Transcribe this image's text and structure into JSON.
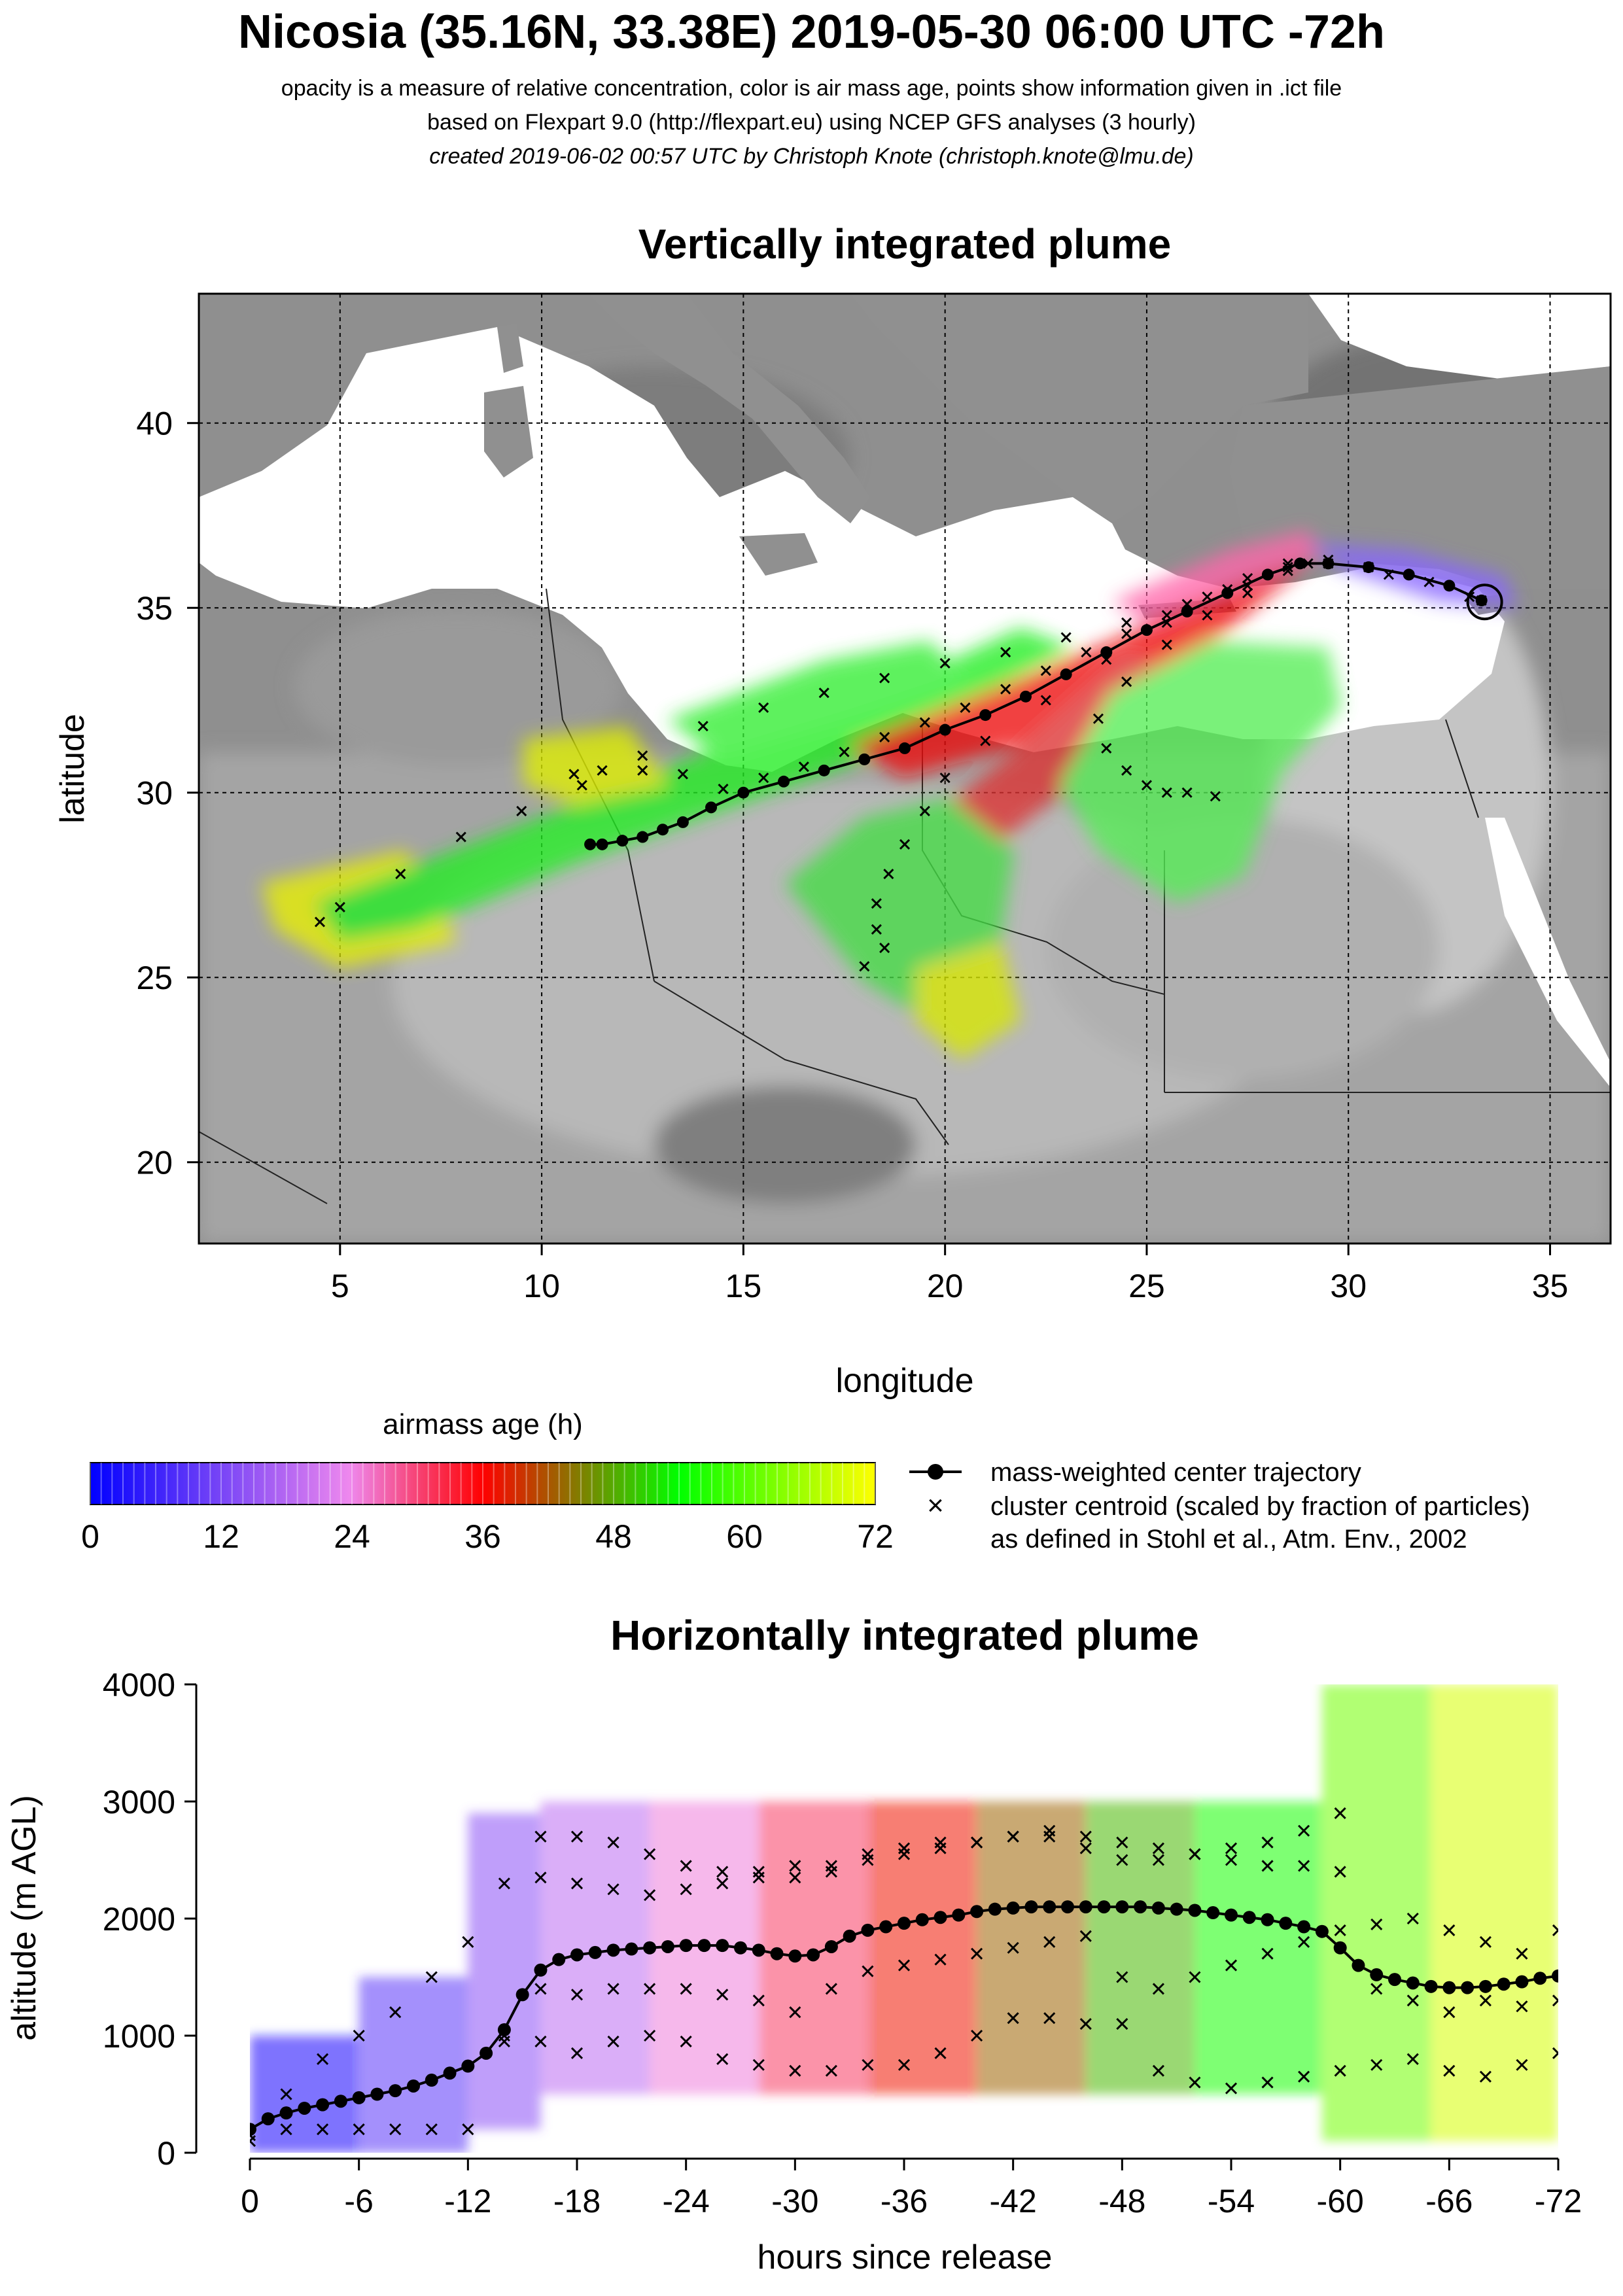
{
  "header": {
    "title": "Nicosia (35.16N, 33.38E) 2019-05-30 06:00 UTC -72h",
    "subtitle1": "opacity is a measure of relative concentration, color is air mass age, points show information given in .ict file",
    "subtitle2": "based on Flexpart 9.0 (http://flexpart.eu) using NCEP GFS analyses (3 hourly)",
    "subtitle3": "created 2019-06-02 00:57 UTC by Christoph Knote (christoph.knote@lmu.de)"
  },
  "colorbar": {
    "title": "airmass age (h)",
    "ticks": [
      "0",
      "12",
      "24",
      "36",
      "48",
      "60",
      "72"
    ],
    "stops": [
      "#0000ff",
      "#ee88ee",
      "#ff0000",
      "#00ff00",
      "#ffff00"
    ]
  },
  "legend": {
    "center_label": "mass-weighted center trajectory",
    "cluster_label": "cluster centroid (scaled by fraction of particles)",
    "cluster_note": "as defined in Stohl et al., Atm. Env., 2002"
  },
  "chart_data": [
    {
      "type": "scatter",
      "title": "Vertically integrated plume",
      "xlabel": "longitude",
      "ylabel": "latitude",
      "xlim": [
        1.5,
        36.5
      ],
      "ylim": [
        17.8,
        43.5
      ],
      "xticks": [
        "5",
        "10",
        "15",
        "20",
        "25",
        "30",
        "35"
      ],
      "yticks": [
        "20",
        "25",
        "30",
        "35",
        "40"
      ],
      "grid": true,
      "release_point": {
        "lon": 33.38,
        "lat": 35.16
      },
      "center_trajectory": {
        "lon": [
          33.3,
          32.5,
          31.5,
          30.5,
          29.5,
          28.8,
          28.0,
          27.0,
          26.0,
          25.0,
          24.0,
          23.0,
          22.0,
          21.0,
          20.0,
          19.0,
          18.0,
          17.0,
          16.0,
          15.0,
          14.2,
          13.5,
          13.0,
          12.5,
          12.0,
          11.5,
          11.2
        ],
        "lat": [
          35.2,
          35.6,
          35.9,
          36.1,
          36.2,
          36.2,
          35.9,
          35.4,
          34.9,
          34.4,
          33.8,
          33.2,
          32.6,
          32.1,
          31.7,
          31.2,
          30.9,
          30.6,
          30.3,
          30.0,
          29.6,
          29.2,
          29.0,
          28.8,
          28.7,
          28.6,
          28.6
        ]
      },
      "clusters": [
        {
          "lon": [
            33.3,
            32.0,
            30.5,
            29.0,
            27.5,
            26.0,
            24.5,
            23.0,
            21.5,
            20.0,
            18.5,
            17.0,
            15.5,
            14.0,
            12.5,
            11.0,
            9.5,
            8.0,
            6.5,
            5.0,
            4.5
          ],
          "lat": [
            35.2,
            35.7,
            36.1,
            36.2,
            35.6,
            35.1,
            34.6,
            34.2,
            33.8,
            33.5,
            33.1,
            32.7,
            32.3,
            31.8,
            31.0,
            30.2,
            29.5,
            28.8,
            27.8,
            26.9,
            26.5
          ]
        },
        {
          "lon": [
            33.0,
            31.0,
            29.5,
            28.5,
            27.5,
            26.5,
            25.5,
            24.5,
            23.5,
            22.5,
            21.5,
            20.5,
            19.5,
            18.5,
            17.5,
            16.5,
            15.5,
            14.5,
            13.5,
            12.5,
            11.5,
            10.8
          ],
          "lat": [
            35.3,
            35.9,
            36.3,
            36.2,
            35.8,
            35.3,
            34.8,
            34.3,
            33.8,
            33.3,
            32.8,
            32.3,
            31.9,
            31.5,
            31.1,
            30.7,
            30.4,
            30.1,
            30.5,
            30.6,
            30.6,
            30.5
          ]
        },
        {
          "lon": [
            29.5,
            28.5,
            27.5,
            26.5,
            25.5,
            24.5,
            23.8,
            24.0,
            24.5,
            25.0,
            25.5,
            26.0,
            26.7
          ],
          "lat": [
            36.2,
            36.0,
            35.4,
            34.8,
            34.0,
            33.0,
            32.0,
            31.2,
            30.6,
            30.2,
            30.0,
            30.0,
            29.9
          ]
        },
        {
          "lon": [
            28.5,
            27.0,
            25.5,
            24.0,
            22.5,
            21.0,
            20.0,
            19.5,
            19.0,
            18.6,
            18.3,
            18.3,
            18.5,
            18.0
          ],
          "lat": [
            36.1,
            35.5,
            34.6,
            33.6,
            32.5,
            31.4,
            30.4,
            29.5,
            28.6,
            27.8,
            27.0,
            26.3,
            25.8,
            25.3
          ]
        }
      ]
    },
    {
      "type": "scatter",
      "title": "Horizontally integrated plume",
      "xlabel": "hours since release",
      "ylabel": "altitude (m AGL)",
      "xlim": [
        0,
        -72
      ],
      "ylim": [
        0,
        4000
      ],
      "xticks": [
        "0",
        "-6",
        "-12",
        "-18",
        "-24",
        "-30",
        "-36",
        "-42",
        "-48",
        "-54",
        "-60",
        "-66",
        "-72"
      ],
      "yticks": [
        "0",
        "1000",
        "2000",
        "3000",
        "4000"
      ],
      "center_trajectory": {
        "hours": [
          0,
          -1,
          -2,
          -3,
          -4,
          -5,
          -6,
          -7,
          -8,
          -9,
          -10,
          -11,
          -12,
          -13,
          -14,
          -15,
          -16,
          -17,
          -18,
          -19,
          -20,
          -21,
          -22,
          -23,
          -24,
          -25,
          -26,
          -27,
          -28,
          -29,
          -30,
          -31,
          -32,
          -33,
          -34,
          -35,
          -36,
          -37,
          -38,
          -39,
          -40,
          -41,
          -42,
          -43,
          -44,
          -45,
          -46,
          -47,
          -48,
          -49,
          -50,
          -51,
          -52,
          -53,
          -54,
          -55,
          -56,
          -57,
          -58,
          -59,
          -60,
          -61,
          -62,
          -63,
          -64,
          -65,
          -66,
          -67,
          -68,
          -69,
          -70,
          -71,
          -72
        ],
        "altitude": [
          200,
          290,
          340,
          380,
          410,
          440,
          470,
          500,
          530,
          570,
          620,
          680,
          740,
          850,
          1050,
          1350,
          1560,
          1650,
          1690,
          1710,
          1730,
          1740,
          1750,
          1760,
          1770,
          1770,
          1770,
          1750,
          1730,
          1700,
          1680,
          1690,
          1760,
          1850,
          1900,
          1930,
          1960,
          1990,
          2010,
          2030,
          2060,
          2080,
          2090,
          2100,
          2100,
          2100,
          2100,
          2100,
          2100,
          2100,
          2090,
          2080,
          2070,
          2050,
          2030,
          2010,
          1990,
          1960,
          1930,
          1890,
          1750,
          1600,
          1520,
          1480,
          1450,
          1420,
          1410,
          1410,
          1420,
          1440,
          1460,
          1490,
          1510
        ]
      },
      "clusters": [
        {
          "hours": [
            0,
            -2,
            -4,
            -6,
            -8,
            -10,
            -12,
            -14,
            -16,
            -18,
            -20,
            -22,
            -24,
            -26,
            -28,
            -30,
            -32,
            -34,
            -36,
            -38,
            -40,
            -42,
            -44,
            -46,
            -48,
            -50,
            -52,
            -54,
            -56,
            -58,
            -60
          ],
          "altitude": [
            150,
            500,
            800,
            1000,
            1200,
            1500,
            1800,
            2300,
            2700,
            2700,
            2650,
            2550,
            2450,
            2400,
            2350,
            2350,
            2400,
            2500,
            2550,
            2600,
            2650,
            2700,
            2700,
            2600,
            2500,
            2500,
            2550,
            2600,
            2650,
            2750,
            2900
          ]
        },
        {
          "hours": [
            -16,
            -18,
            -20,
            -22,
            -24,
            -26,
            -28,
            -30,
            -32,
            -34,
            -36,
            -38,
            -40,
            -42,
            -44,
            -46,
            -48,
            -50,
            -52,
            -54,
            -56,
            -58,
            -60,
            -62,
            -64,
            -66,
            -68,
            -70,
            -72
          ],
          "altitude": [
            2350,
            2300,
            2250,
            2200,
            2250,
            2300,
            2400,
            2450,
            2450,
            2550,
            2600,
            2650,
            2650,
            2700,
            2750,
            2700,
            2650,
            2600,
            2550,
            2500,
            2450,
            2450,
            2400,
            1400,
            1300,
            1200,
            1300,
            1250,
            1300
          ]
        },
        {
          "hours": [
            -14,
            -16,
            -18,
            -20,
            -22,
            -24,
            -26,
            -28,
            -30,
            -32,
            -34,
            -36,
            -38,
            -40,
            -42,
            -44,
            -46,
            -48,
            -50,
            -52,
            -54,
            -56,
            -58,
            -60,
            -62,
            -64,
            -66,
            -68,
            -70,
            -72
          ],
          "altitude": [
            1000,
            1400,
            1350,
            1400,
            1400,
            1400,
            1350,
            1300,
            1200,
            1400,
            1550,
            1600,
            1650,
            1700,
            1750,
            1800,
            1850,
            1500,
            1400,
            1500,
            1600,
            1700,
            1800,
            1900,
            1950,
            2000,
            1900,
            1800,
            1700,
            1900
          ]
        },
        {
          "hours": [
            0,
            -2,
            -4,
            -6,
            -8,
            -10,
            -12,
            -14,
            -16,
            -18,
            -20,
            -22,
            -24,
            -26,
            -28,
            -30,
            -32,
            -34,
            -36,
            -38,
            -40,
            -42,
            -44,
            -46,
            -48,
            -50,
            -52,
            -54,
            -56,
            -58,
            -60,
            -62,
            -64,
            -66,
            -68,
            -70,
            -72
          ],
          "altitude": [
            100,
            200,
            200,
            200,
            200,
            200,
            200,
            950,
            950,
            850,
            950,
            1000,
            950,
            800,
            750,
            700,
            700,
            750,
            750,
            850,
            1000,
            1150,
            1150,
            1100,
            1100,
            700,
            600,
            550,
            600,
            650,
            700,
            750,
            800,
            700,
            650,
            750,
            850
          ]
        }
      ],
      "plume_blocks": [
        {
          "h0": 0,
          "h1": -6,
          "z0": 0,
          "z1": 1000,
          "age": 2
        },
        {
          "h0": -6,
          "h1": -12,
          "z0": 0,
          "z1": 1500,
          "age": 9
        },
        {
          "h0": -12,
          "h1": -16,
          "z0": 200,
          "z1": 2900,
          "age": 14
        },
        {
          "h0": -16,
          "h1": -22,
          "z0": 500,
          "z1": 3000,
          "age": 19
        },
        {
          "h0": -22,
          "h1": -28,
          "z0": 500,
          "z1": 3000,
          "age": 25
        },
        {
          "h0": -28,
          "h1": -34,
          "z0": 500,
          "z1": 3000,
          "age": 31
        },
        {
          "h0": -34,
          "h1": -40,
          "z0": 500,
          "z1": 3000,
          "age": 37
        },
        {
          "h0": -40,
          "h1": -46,
          "z0": 500,
          "z1": 3000,
          "age": 43
        },
        {
          "h0": -46,
          "h1": -52,
          "z0": 500,
          "z1": 3000,
          "age": 49
        },
        {
          "h0": -52,
          "h1": -59,
          "z0": 500,
          "z1": 3000,
          "age": 55
        },
        {
          "h0": -59,
          "h1": -65,
          "z0": 100,
          "z1": 4000,
          "age": 62
        },
        {
          "h0": -65,
          "h1": -72,
          "z0": 100,
          "z1": 4000,
          "age": 69
        }
      ]
    }
  ]
}
